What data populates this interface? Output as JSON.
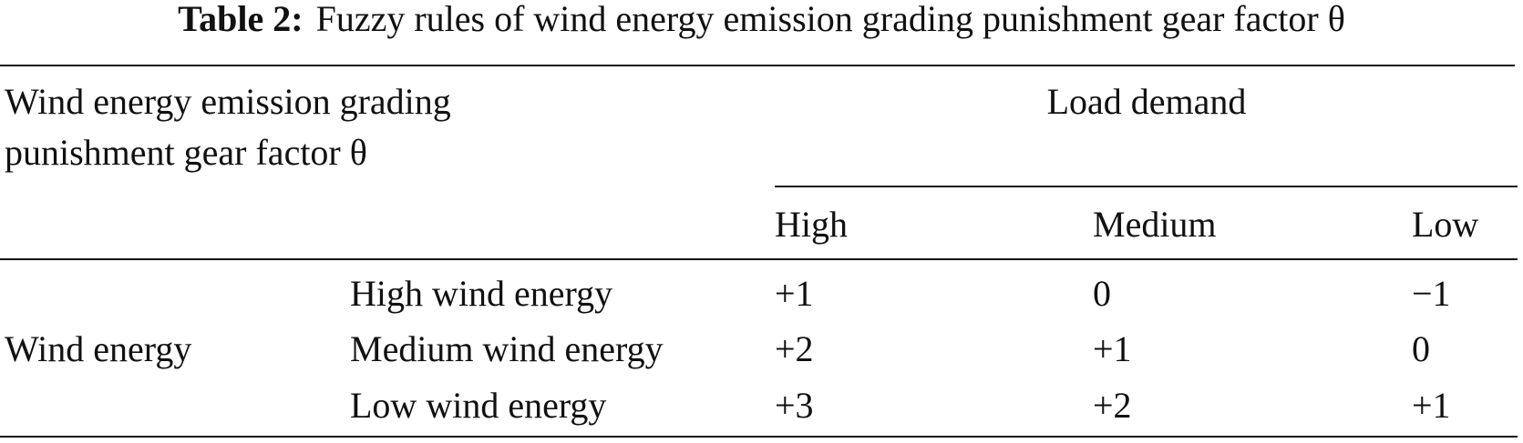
{
  "caption": {
    "label": "Table 2:",
    "text": "Fuzzy rules of wind energy emission grading punishment gear factor θ"
  },
  "table": {
    "stub_header": [
      "Wind energy emission grading",
      "punishment gear factor θ"
    ],
    "column_group": "Load demand",
    "columns": [
      "High",
      "Medium",
      "Low"
    ],
    "row_group": "Wind energy",
    "rows": [
      {
        "label": "High wind energy",
        "values": [
          "+1",
          "0",
          "−1"
        ]
      },
      {
        "label": "Medium wind energy",
        "values": [
          "+2",
          "+1",
          "0"
        ]
      },
      {
        "label": "Low wind energy",
        "values": [
          "+3",
          "+2",
          "+1"
        ]
      }
    ]
  }
}
